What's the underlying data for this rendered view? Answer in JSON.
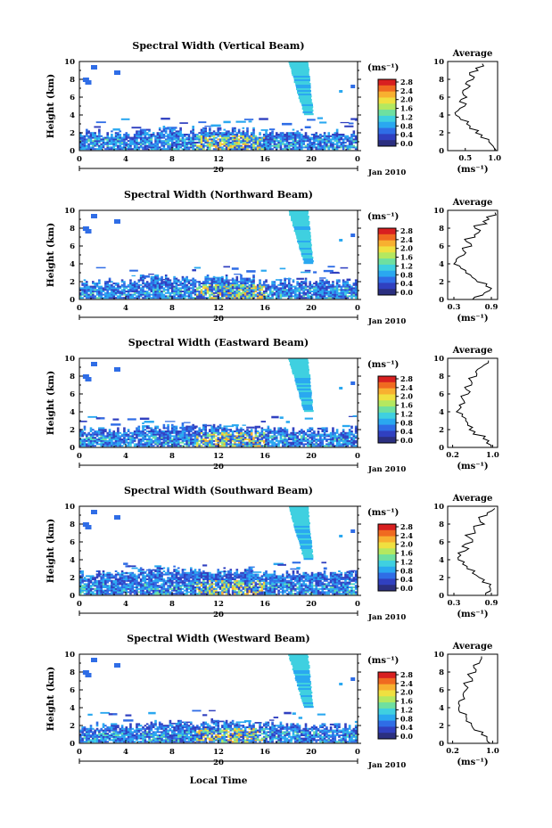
{
  "figure": {
    "x_axis_label": "Local Time",
    "colorbar_unit": "(ms⁻¹)",
    "colorbar_ticks": [
      "2.8",
      "2.4",
      "2.0",
      "1.6",
      "1.2",
      "0.8",
      "0.4",
      "0.0"
    ],
    "colorbar_colors": [
      "#2b2f80",
      "#3040c0",
      "#2f6de6",
      "#2aa8f0",
      "#3fd0e0",
      "#6ee0a0",
      "#b4e860",
      "#f0e040",
      "#f8b030",
      "#f06a20",
      "#d82020"
    ]
  },
  "chart_data": [
    {
      "type": "heatmap",
      "title": "Spectral Width (Vertical Beam)",
      "ylabel": "Height (km)",
      "xlim": [
        0,
        24
      ],
      "ylim": [
        0,
        10
      ],
      "x_ticks": [
        "0",
        "4",
        "8",
        "12",
        "16",
        "20",
        "0"
      ],
      "y_ticks": [
        "0",
        "2",
        "4",
        "6",
        "8",
        "10"
      ],
      "date_day": "20",
      "date_label": "Jan 2010",
      "colorbar_unit": "(ms⁻¹)",
      "average_profile": {
        "title": "Average",
        "xlabel": "(ms⁻¹)",
        "x_ticks": [
          "0.5",
          "1.0"
        ],
        "xlim": [
          0.2,
          1.05
        ],
        "height": [
          0,
          0.5,
          1,
          1.5,
          2,
          2.5,
          3,
          3.5,
          4,
          4.5,
          5,
          5.5,
          6,
          6.5,
          7,
          7.5,
          8,
          8.5,
          9,
          9.5
        ],
        "value": [
          1.0,
          0.97,
          0.9,
          0.78,
          0.7,
          0.6,
          0.52,
          0.42,
          0.36,
          0.38,
          0.48,
          0.42,
          0.5,
          0.44,
          0.56,
          0.5,
          0.64,
          0.58,
          0.7,
          0.8
        ]
      }
    },
    {
      "type": "heatmap",
      "title": "Spectral Width (Northward Beam)",
      "ylabel": "Height (km)",
      "xlim": [
        0,
        24
      ],
      "ylim": [
        0,
        10
      ],
      "x_ticks": [
        "0",
        "4",
        "8",
        "12",
        "16",
        "20",
        "0"
      ],
      "y_ticks": [
        "0",
        "2",
        "4",
        "6",
        "8",
        "10"
      ],
      "date_day": "20",
      "date_label": "Jan 2010",
      "colorbar_unit": "(ms⁻¹)",
      "average_profile": {
        "title": "Average",
        "xlabel": "(ms⁻¹)",
        "x_ticks": [
          "0.3",
          "0.9"
        ],
        "xlim": [
          0.2,
          1.0
        ],
        "height": [
          0,
          0.5,
          1,
          1.5,
          2,
          2.5,
          3,
          3.5,
          4,
          4.5,
          5,
          5.5,
          6,
          6.5,
          7,
          7.5,
          8,
          8.5,
          9,
          9.5
        ],
        "value": [
          0.6,
          0.78,
          0.9,
          0.82,
          0.66,
          0.58,
          0.5,
          0.42,
          0.3,
          0.36,
          0.48,
          0.42,
          0.56,
          0.5,
          0.62,
          0.72,
          0.66,
          0.8,
          0.86,
          0.95
        ]
      }
    },
    {
      "type": "heatmap",
      "title": "Spectral Width (Eastward Beam)",
      "ylabel": "Height (km)",
      "xlim": [
        0,
        24
      ],
      "ylim": [
        0,
        10
      ],
      "x_ticks": [
        "0",
        "4",
        "8",
        "12",
        "16",
        "20",
        "0"
      ],
      "y_ticks": [
        "0",
        "2",
        "4",
        "6",
        "8",
        "10"
      ],
      "date_day": "20",
      "date_label": "Jan 2010",
      "colorbar_unit": "(ms⁻¹)",
      "average_profile": {
        "title": "Average",
        "xlabel": "(ms⁻¹)",
        "x_ticks": [
          "0.2",
          "1.0"
        ],
        "xlim": [
          0.1,
          1.1
        ],
        "height": [
          0,
          0.5,
          1,
          1.5,
          2,
          2.5,
          3,
          3.5,
          4,
          4.5,
          5,
          5.5,
          6,
          6.5,
          7,
          7.5,
          8,
          8.5,
          9,
          9.5
        ],
        "value": [
          0.95,
          0.9,
          0.82,
          0.64,
          0.56,
          0.5,
          0.44,
          0.36,
          0.3,
          0.36,
          0.46,
          0.4,
          0.52,
          0.46,
          0.6,
          0.56,
          0.7,
          0.66,
          0.8,
          0.9
        ]
      }
    },
    {
      "type": "heatmap",
      "title": "Spectral Width (Southward Beam)",
      "ylabel": "Height (km)",
      "xlim": [
        0,
        24
      ],
      "ylim": [
        0,
        10
      ],
      "x_ticks": [
        "0",
        "4",
        "8",
        "12",
        "16",
        "20",
        "0"
      ],
      "y_ticks": [
        "0",
        "2",
        "4",
        "6",
        "8",
        "10"
      ],
      "date_day": "20",
      "date_label": "Jan 2010",
      "colorbar_unit": "(ms⁻¹)",
      "average_profile": {
        "title": "Average",
        "xlabel": "(ms⁻¹)",
        "x_ticks": [
          "0.3",
          "0.9"
        ],
        "xlim": [
          0.2,
          1.0
        ],
        "height": [
          0,
          0.5,
          1,
          1.5,
          2,
          2.5,
          3,
          3.5,
          4,
          4.5,
          5,
          5.5,
          6,
          6.5,
          7,
          7.5,
          8,
          8.5,
          9,
          9.5
        ],
        "value": [
          0.82,
          0.9,
          0.86,
          0.78,
          0.7,
          0.62,
          0.54,
          0.44,
          0.34,
          0.4,
          0.5,
          0.46,
          0.58,
          0.52,
          0.66,
          0.62,
          0.76,
          0.7,
          0.86,
          0.94
        ]
      }
    },
    {
      "type": "heatmap",
      "title": "Spectral Width (Westward Beam)",
      "ylabel": "Height (km)",
      "xlim": [
        0,
        24
      ],
      "ylim": [
        0,
        10
      ],
      "x_ticks": [
        "0",
        "4",
        "8",
        "12",
        "16",
        "20",
        "0"
      ],
      "y_ticks": [
        "0",
        "2",
        "4",
        "6",
        "8",
        "10"
      ],
      "date_day": "20",
      "date_label": "Jan 2010",
      "colorbar_unit": "(ms⁻¹)",
      "average_profile": {
        "title": "Average",
        "xlabel": "(ms⁻¹)",
        "x_ticks": [
          "0.2",
          "1.0"
        ],
        "xlim": [
          0.1,
          1.1
        ],
        "height": [
          0,
          0.5,
          1,
          1.5,
          2,
          2.5,
          3,
          3.5,
          4,
          4.5,
          5,
          5.5,
          6,
          6.5,
          7,
          7.5,
          8,
          8.5,
          9,
          9.5
        ],
        "value": [
          0.92,
          0.86,
          0.78,
          0.64,
          0.56,
          0.5,
          0.44,
          0.36,
          0.3,
          0.34,
          0.44,
          0.4,
          0.5,
          0.46,
          0.58,
          0.54,
          0.66,
          0.62,
          0.72,
          0.8
        ]
      }
    }
  ]
}
